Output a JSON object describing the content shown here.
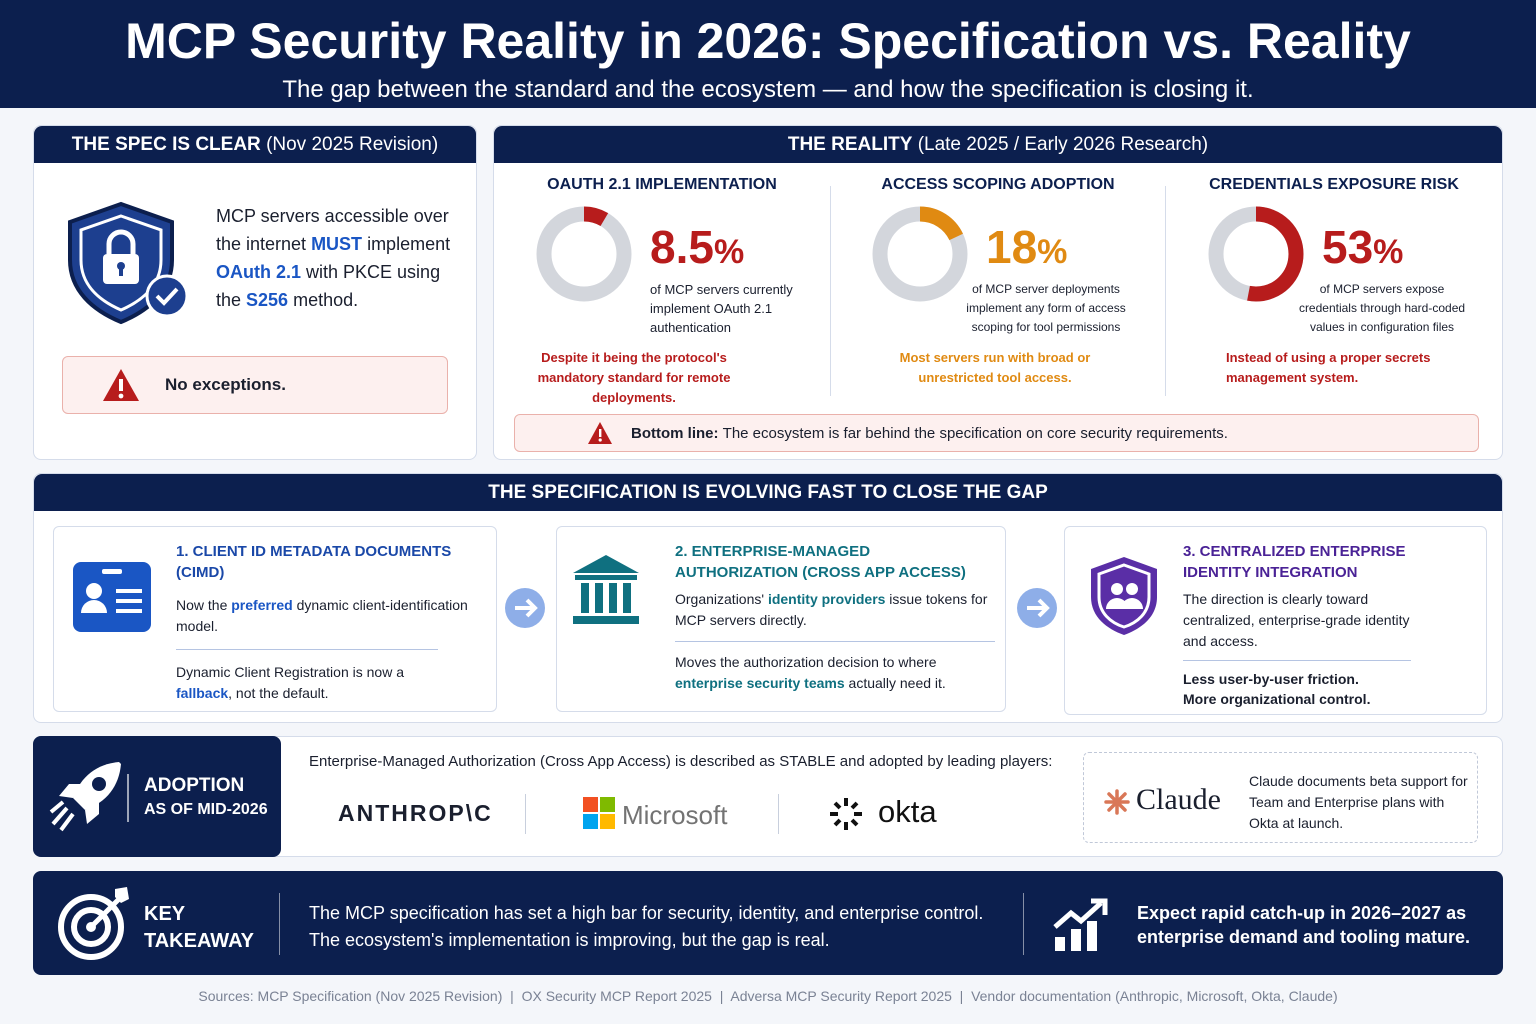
{
  "header": {
    "title": "MCP Security Reality in 2026: Specification vs. Reality",
    "subtitle": "The gap between the standard and the ecosystem — and how the specification is closing it."
  },
  "spec": {
    "heading_bold": "THE SPEC IS CLEAR",
    "heading_rest": "(Nov 2025 Revision)",
    "body": [
      "MCP servers accessible over the internet ",
      "MUST",
      " implement ",
      "OAuth 2.1",
      " with PKCE using the ",
      "S256",
      " method."
    ],
    "warning": "No exceptions."
  },
  "reality": {
    "heading_bold": "THE REALITY",
    "heading_rest": "(Late 2025 / Early 2026 Research)",
    "stats": [
      {
        "title": "OAUTH 2.1 IMPLEMENTATION",
        "value": 8.5,
        "unit": "%",
        "color": "#b71c1c",
        "description": "of MCP servers currently implement OAuth 2.1 authentication",
        "note": "Despite it being the protocol's mandatory standard for remote deployments."
      },
      {
        "title": "ACCESS SCOPING ADOPTION",
        "value": 18,
        "unit": "%",
        "color": "#e08a12",
        "description": "of MCP server deployments implement any form of access scoping for tool permissions",
        "note": "Most servers run with broad or unrestricted tool access."
      },
      {
        "title": "CREDENTIALS EXPOSURE RISK",
        "value": 53,
        "unit": "%",
        "color": "#b71c1c",
        "description": "of MCP servers expose credentials through hard-coded values in configuration files",
        "note": "Instead of using a proper secrets management system."
      }
    ],
    "bottom_line_label": "Bottom line:",
    "bottom_line": "The ecosystem is far behind the specification on core security requirements."
  },
  "evolving": {
    "heading": "THE SPECIFICATION IS EVOLVING FAST TO CLOSE THE GAP",
    "steps": [
      {
        "title": "1. CLIENT ID METADATA DOCUMENTS (CIMD)",
        "body": [
          "Now the ",
          "preferred",
          " dynamic client-identification model."
        ],
        "detail": [
          "Dynamic Client Registration is now a ",
          "fallback",
          ", not the default."
        ]
      },
      {
        "title": "2. ENTERPRISE-MANAGED AUTHORIZATION (CROSS APP ACCESS)",
        "body": [
          "Organizations' ",
          "identity providers",
          " issue tokens for MCP servers directly."
        ],
        "detail": [
          "Moves the authorization decision to where ",
          "enterprise security teams",
          " actually need it."
        ]
      },
      {
        "title": "3. CENTRALIZED ENTERPRISE IDENTITY INTEGRATION",
        "body": [
          "The direction is clearly toward centralized, enterprise-grade identity and access."
        ],
        "detail": [
          "Less user-by-user friction.",
          "More organizational control."
        ]
      }
    ]
  },
  "adoption": {
    "label": [
      "ADOPTION",
      "AS OF MID-2026"
    ],
    "intro": "Enterprise-Managed Authorization (Cross App Access) is described as STABLE and adopted by leading players:",
    "logos": [
      "ANTHROP\\C",
      "Microsoft",
      "okta"
    ],
    "claude_name": "Claude",
    "claude_note": "Claude documents beta support for Team and Enterprise plans with Okta at launch."
  },
  "takeaway": {
    "label": [
      "KEY",
      "TAKEAWAY"
    ],
    "text": [
      "The MCP specification has set a high bar for security, identity, and enterprise control.",
      "The ecosystem's implementation is improving, but the gap is real."
    ],
    "outlook": "Expect rapid catch-up in 2026–2027 as enterprise demand and tooling mature."
  },
  "sources": "Sources: MCP Specification (Nov 2025 Revision)  |  OX Security MCP Report 2025  |  Adversa MCP Security Report 2025  |  Vendor documentation (Anthropic, Microsoft, Okta, Claude)"
}
